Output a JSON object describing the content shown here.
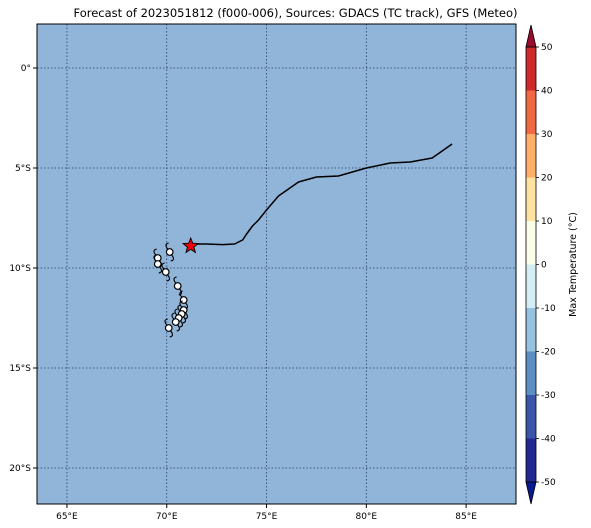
{
  "title": "Forecast of 2023051812 (f000-006), Sources: GDACS (TC track), GFS (Meteo)",
  "map": {
    "ocean_color": "#91b4d9",
    "grid_line_style": "dotted",
    "lon_range": [
      63.5,
      87.5
    ],
    "lat_range": [
      -21.8,
      2.2
    ],
    "lon_ticks": [
      {
        "value": 65,
        "label": "65°E"
      },
      {
        "value": 70,
        "label": "70°E"
      },
      {
        "value": 75,
        "label": "75°E"
      },
      {
        "value": 80,
        "label": "80°E"
      },
      {
        "value": 85,
        "label": "85°E"
      }
    ],
    "lat_ticks": [
      {
        "value": 0,
        "label": "0°"
      },
      {
        "value": -5,
        "label": "5°S"
      },
      {
        "value": -10,
        "label": "10°S"
      },
      {
        "value": -15,
        "label": "15°S"
      },
      {
        "value": -20,
        "label": "20°S"
      }
    ],
    "track": {
      "color": "#000000",
      "points": [
        [
          84.3,
          -3.8
        ],
        [
          83.3,
          -4.5
        ],
        [
          82.2,
          -4.7
        ],
        [
          81.2,
          -4.75
        ],
        [
          80.0,
          -5.0
        ],
        [
          78.6,
          -5.4
        ],
        [
          77.5,
          -5.45
        ],
        [
          76.6,
          -5.7
        ],
        [
          75.6,
          -6.4
        ],
        [
          75.0,
          -7.1
        ],
        [
          74.6,
          -7.6
        ],
        [
          74.3,
          -7.9
        ],
        [
          74.0,
          -8.3
        ],
        [
          73.8,
          -8.6
        ],
        [
          73.4,
          -8.8
        ],
        [
          72.8,
          -8.83
        ],
        [
          72.0,
          -8.8
        ],
        [
          71.2,
          -8.8
        ]
      ]
    },
    "current_position": {
      "lon": 71.2,
      "lat": -8.9,
      "marker": "star",
      "color": "#e8000b"
    },
    "forecast_symbols": {
      "icon": "cyclone-symbol-icon",
      "points": [
        [
          70.15,
          -9.2
        ],
        [
          69.55,
          -9.5
        ],
        [
          69.55,
          -9.8
        ],
        [
          69.95,
          -10.2
        ],
        [
          70.55,
          -10.9
        ],
        [
          70.85,
          -11.6
        ],
        [
          70.85,
          -12.1
        ],
        [
          70.75,
          -12.3
        ],
        [
          70.6,
          -12.5
        ],
        [
          70.45,
          -12.7
        ],
        [
          70.1,
          -13.0
        ]
      ]
    }
  },
  "colorbar": {
    "label": "Max Temperature (°C)",
    "ticks": [
      50,
      40,
      30,
      20,
      10,
      0,
      -10,
      -20,
      -30,
      -40,
      -50
    ],
    "min": -55,
    "max": 55,
    "levels": [
      {
        "from": -55,
        "to": -50,
        "color": "#0b1a8c"
      },
      {
        "from": -50,
        "to": -40,
        "color": "#23298f"
      },
      {
        "from": -40,
        "to": -30,
        "color": "#3b56a8"
      },
      {
        "from": -30,
        "to": -20,
        "color": "#5c8fc2"
      },
      {
        "from": -20,
        "to": -10,
        "color": "#94c2df"
      },
      {
        "from": -10,
        "to": 0,
        "color": "#d4ecf4"
      },
      {
        "from": 0,
        "to": 10,
        "color": "#fafde8"
      },
      {
        "from": 10,
        "to": 20,
        "color": "#fee3a0"
      },
      {
        "from": 20,
        "to": 30,
        "color": "#fcae6b"
      },
      {
        "from": 30,
        "to": 40,
        "color": "#ef6a44"
      },
      {
        "from": 40,
        "to": 50,
        "color": "#cd2b2a"
      },
      {
        "from": 50,
        "to": 55,
        "color": "#9b0b2b"
      }
    ]
  }
}
